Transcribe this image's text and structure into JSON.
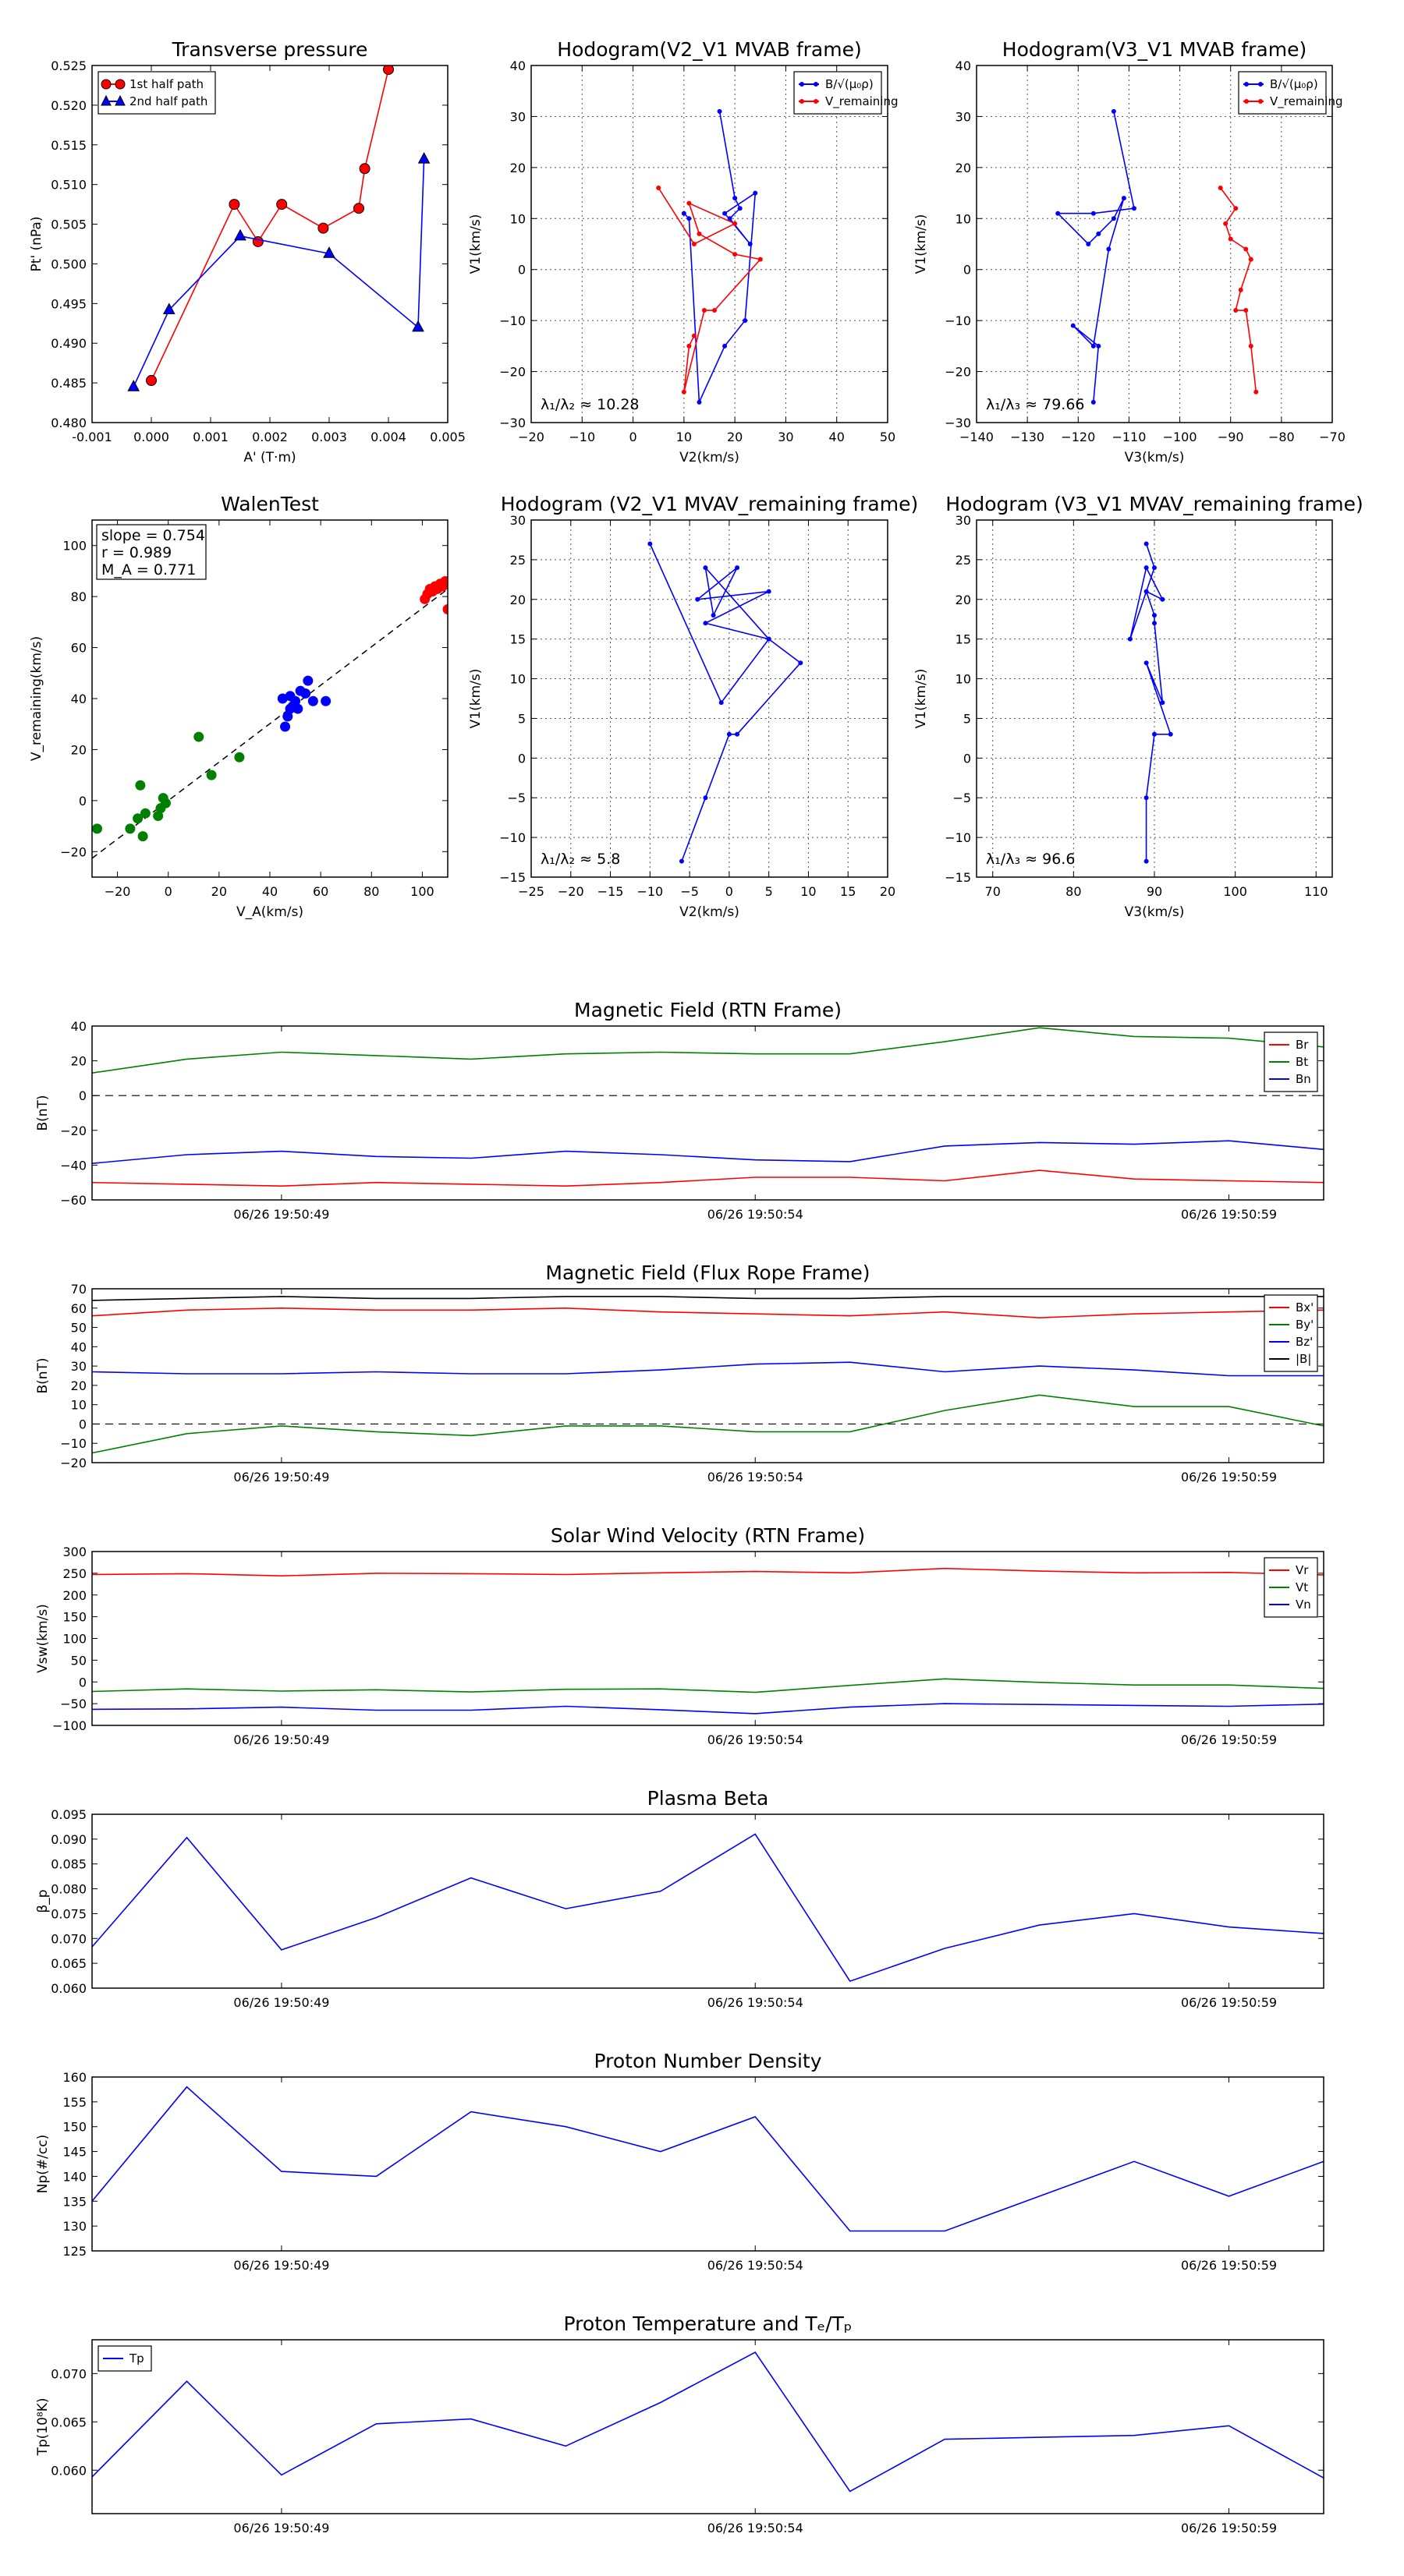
{
  "colors": {
    "red": "#ff0000",
    "green": "#008000",
    "blue": "#0000ff",
    "black": "#000000"
  },
  "chart_data": [
    {
      "id": "transverse-pressure",
      "type": "line",
      "title": "Transverse pressure",
      "xlabel": "A' (T·m)",
      "ylabel": "Pt' (nPa)",
      "xlim": [
        -0.001,
        0.005
      ],
      "ylim": [
        0.48,
        0.525
      ],
      "xticks": [
        "-0.001",
        "0.000",
        "0.001",
        "0.002",
        "0.003",
        "0.004",
        "0.005"
      ],
      "yticks": [
        "0.480",
        "0.485",
        "0.490",
        "0.495",
        "0.500",
        "0.505",
        "0.510",
        "0.515",
        "0.520",
        "0.525"
      ],
      "grid": false,
      "legend": "top-left",
      "series": [
        {
          "name": "1st half path",
          "color": "#ff0000",
          "marker": "circle",
          "x": [
            0.0,
            0.0014,
            0.0018,
            0.0022,
            0.0029,
            0.0035,
            0.0036,
            0.004
          ],
          "y": [
            0.4853,
            0.5075,
            0.5028,
            0.5075,
            0.5045,
            0.507,
            0.512,
            0.5245
          ]
        },
        {
          "name": "2nd half path",
          "color": "#0000ff",
          "marker": "triangle",
          "x": [
            -0.0003,
            0.0003,
            0.0015,
            0.003,
            0.0045,
            0.0046
          ],
          "y": [
            0.4845,
            0.4942,
            0.5035,
            0.5013,
            0.492,
            0.5132
          ]
        }
      ]
    },
    {
      "id": "hodogram-v2-v1-mvab",
      "type": "line",
      "title": "Hodogram(V2_V1 MVAB frame)",
      "xlabel": "V2(km/s)",
      "ylabel": "V1(km/s)",
      "xlim": [
        -20,
        50
      ],
      "ylim": [
        -30,
        40
      ],
      "xticks": [
        "−20",
        "−10",
        "0",
        "10",
        "20",
        "30",
        "40",
        "50"
      ],
      "yticks": [
        "−30",
        "−20",
        "−10",
        "0",
        "10",
        "20",
        "30",
        "40"
      ],
      "grid": true,
      "legend": "top-right",
      "annotation": "λ₁/λ₂ ≈ 10.28",
      "series": [
        {
          "name": "B/√(μ₀ρ)",
          "color": "#0000ff",
          "x": [
            17,
            20,
            21,
            19,
            23,
            18,
            24,
            22,
            18,
            13,
            11,
            10
          ],
          "y": [
            31,
            14,
            12,
            10,
            5,
            11,
            15,
            -10,
            -15,
            -26,
            10,
            11
          ]
        },
        {
          "name": "V_remaining",
          "color": "#ff0000",
          "x": [
            5,
            12,
            20,
            11,
            13,
            20,
            25,
            16,
            14,
            10,
            11,
            12
          ],
          "y": [
            16,
            5,
            9,
            13,
            7,
            3,
            2,
            -8,
            -8,
            -24,
            -15,
            -13
          ]
        }
      ]
    },
    {
      "id": "hodogram-v3-v1-mvab",
      "type": "line",
      "title": "Hodogram(V3_V1 MVAB frame)",
      "xlabel": "V3(km/s)",
      "ylabel": "V1(km/s)",
      "xlim": [
        -140,
        -70
      ],
      "ylim": [
        -30,
        40
      ],
      "xticks": [
        "−140",
        "−130",
        "−120",
        "−110",
        "−100",
        "−90",
        "−80",
        "−70"
      ],
      "yticks": [
        "−30",
        "−20",
        "−10",
        "0",
        "10",
        "20",
        "30",
        "40"
      ],
      "grid": true,
      "legend": "top-right",
      "annotation": "λ₁/λ₃ ≈ 79.66",
      "series": [
        {
          "name": "B/√(μ₀ρ)",
          "color": "#0000ff",
          "x": [
            -113,
            -109,
            -117,
            -124,
            -118,
            -116,
            -113,
            -111,
            -114,
            -117,
            -121,
            -116,
            -117
          ],
          "y": [
            31,
            12,
            11,
            11,
            5,
            7,
            10,
            14,
            4,
            -15,
            -11,
            -15,
            -26
          ]
        },
        {
          "name": "V_remaining",
          "color": "#ff0000",
          "x": [
            -92,
            -89,
            -91,
            -90,
            -87,
            -86,
            -88,
            -89,
            -87,
            -86,
            -85
          ],
          "y": [
            16,
            12,
            9,
            6,
            4,
            2,
            -4,
            -8,
            -8,
            -15,
            -24
          ]
        }
      ]
    },
    {
      "id": "walen-test",
      "type": "scatter",
      "title": "WalenTest",
      "xlabel": "V_A(km/s)",
      "ylabel": "V_remaining(km/s)",
      "xlim": [
        -30,
        110
      ],
      "ylim": [
        -30,
        110
      ],
      "xticks": [
        "−20",
        "0",
        "20",
        "40",
        "60",
        "80",
        "100"
      ],
      "yticks": [
        "−20",
        "0",
        "20",
        "40",
        "60",
        "80",
        "100"
      ],
      "grid": false,
      "stats": {
        "slope": "slope = 0.754",
        "r": "r = 0.989",
        "ma": "M_A = 0.771"
      },
      "fit_line": {
        "slope": 0.754,
        "intercept": 0
      },
      "series": [
        {
          "name": "green",
          "color": "#008000",
          "x": [
            -28,
            -15,
            -12,
            -11,
            -10,
            -9,
            -4,
            -3,
            -2,
            -1,
            12,
            17,
            28
          ],
          "y": [
            -11,
            -11,
            -7,
            6,
            -14,
            -5,
            -6,
            -3,
            1,
            -1,
            25,
            10,
            17
          ]
        },
        {
          "name": "blue",
          "color": "#0000ff",
          "x": [
            45,
            46,
            47,
            48,
            48,
            49,
            50,
            51,
            52,
            54,
            55,
            57,
            62
          ],
          "y": [
            40,
            29,
            33,
            36,
            41,
            37,
            39,
            36,
            43,
            42,
            47,
            39,
            39
          ]
        },
        {
          "name": "red",
          "color": "#ff0000",
          "x": [
            101,
            102,
            103,
            104,
            105,
            106,
            107,
            108,
            109,
            110,
            110
          ],
          "y": [
            79,
            81,
            83,
            82,
            84,
            83,
            85,
            84,
            86,
            85,
            75
          ]
        }
      ]
    },
    {
      "id": "hodogram-v2-v1-mvav",
      "type": "line",
      "title": "Hodogram (V2_V1 MVAV_remaining frame)",
      "xlabel": "V2(km/s)",
      "ylabel": "V1(km/s)",
      "xlim": [
        -25,
        20
      ],
      "ylim": [
        -15,
        30
      ],
      "xticks": [
        "−25",
        "−20",
        "−15",
        "−10",
        "−5",
        "0",
        "5",
        "10",
        "15",
        "20"
      ],
      "yticks": [
        "−15",
        "−10",
        "−5",
        "0",
        "5",
        "10",
        "15",
        "20",
        "25",
        "30"
      ],
      "grid": true,
      "annotation": "λ₁/λ₂ ≈ 5.8",
      "series": [
        {
          "name": "hodogram",
          "color": "#0000ff",
          "x": [
            -10,
            -1,
            5,
            -3,
            -2,
            1,
            -4,
            5,
            -3,
            5,
            9,
            1,
            0,
            -3,
            -6
          ],
          "y": [
            27,
            7,
            15,
            24,
            18,
            24,
            20,
            21,
            17,
            15,
            12,
            3,
            3,
            -5,
            -13
          ]
        }
      ]
    },
    {
      "id": "hodogram-v3-v1-mvav",
      "type": "line",
      "title": "Hodogram (V3_V1 MVAV_remaining frame)",
      "xlabel": "V3(km/s)",
      "ylabel": "V1(km/s)",
      "xlim": [
        68,
        112
      ],
      "ylim": [
        -15,
        30
      ],
      "xticks": [
        "70",
        "80",
        "90",
        "100",
        "110"
      ],
      "yticks": [
        "−15",
        "−10",
        "−5",
        "0",
        "5",
        "10",
        "15",
        "20",
        "25",
        "30"
      ],
      "grid": true,
      "annotation": "λ₁/λ₃ ≈ 96.6",
      "series": [
        {
          "name": "hodogram",
          "color": "#0000ff",
          "x": [
            89,
            90,
            87,
            89,
            91,
            89,
            90,
            90,
            91,
            89,
            92,
            90,
            89,
            89
          ],
          "y": [
            27,
            24,
            15,
            24,
            20,
            21,
            18,
            17,
            7,
            12,
            3,
            3,
            -5,
            -13
          ]
        }
      ]
    },
    {
      "id": "magnetic-field-rtn",
      "type": "line",
      "title": "Magnetic Field (RTN Frame)",
      "ylabel": "B(nT)",
      "xlim": [
        0,
        13
      ],
      "ylim": [
        -60,
        40
      ],
      "time_ticks": [
        {
          "x": 2,
          "label": "06/26 19:50:49"
        },
        {
          "x": 7,
          "label": "06/26 19:50:54"
        },
        {
          "x": 12,
          "label": "06/26 19:50:59"
        }
      ],
      "yticks": [
        "−60",
        "−40",
        "−20",
        "0",
        "20",
        "40"
      ],
      "zero_line": true,
      "legend": "top-right",
      "x": [
        0,
        1,
        2,
        3,
        4,
        5,
        6,
        7,
        8,
        9,
        10,
        11,
        12,
        13
      ],
      "series": [
        {
          "name": "Br",
          "color": "#ff0000",
          "values": [
            -50,
            -51,
            -52,
            -50,
            -51,
            -52,
            -50,
            -47,
            -47,
            -49,
            -43,
            -48,
            -49,
            -50
          ]
        },
        {
          "name": "Bt",
          "color": "#008000",
          "values": [
            13,
            21,
            25,
            23,
            21,
            24,
            25,
            24,
            24,
            31,
            39,
            34,
            33,
            28
          ]
        },
        {
          "name": "Bn",
          "color": "#0000ff",
          "values": [
            -39,
            -34,
            -32,
            -35,
            -36,
            -32,
            -34,
            -37,
            -38,
            -29,
            -27,
            -28,
            -26,
            -31
          ]
        }
      ]
    },
    {
      "id": "magnetic-field-flux-rope",
      "type": "line",
      "title": "Magnetic Field (Flux Rope Frame)",
      "ylabel": "B(nT)",
      "xlim": [
        0,
        13
      ],
      "ylim": [
        -20,
        70
      ],
      "time_ticks": [
        {
          "x": 2,
          "label": "06/26 19:50:49"
        },
        {
          "x": 7,
          "label": "06/26 19:50:54"
        },
        {
          "x": 12,
          "label": "06/26 19:50:59"
        }
      ],
      "yticks": [
        "−20",
        "−10",
        "0",
        "10",
        "20",
        "30",
        "40",
        "50",
        "60",
        "70"
      ],
      "zero_line": true,
      "legend": "top-right",
      "x": [
        0,
        1,
        2,
        3,
        4,
        5,
        6,
        7,
        8,
        9,
        10,
        11,
        12,
        13
      ],
      "series": [
        {
          "name": "Bx'",
          "color": "#ff0000",
          "values": [
            56,
            59,
            60,
            59,
            59,
            60,
            58,
            57,
            56,
            58,
            55,
            57,
            58,
            59
          ]
        },
        {
          "name": "By'",
          "color": "#008000",
          "values": [
            -15,
            -5,
            -1,
            -4,
            -6,
            -1,
            -1,
            -4,
            -4,
            7,
            15,
            9,
            9,
            -1
          ]
        },
        {
          "name": "Bz'",
          "color": "#0000ff",
          "values": [
            27,
            26,
            26,
            27,
            26,
            26,
            28,
            31,
            32,
            27,
            30,
            28,
            25,
            25
          ]
        },
        {
          "name": "|B|",
          "color": "#000000",
          "values": [
            64,
            65,
            66,
            65,
            65,
            66,
            66,
            65,
            65,
            66,
            66,
            66,
            66,
            66
          ]
        }
      ]
    },
    {
      "id": "solar-wind-velocity",
      "type": "line",
      "title": "Solar Wind Velocity (RTN Frame)",
      "ylabel": "Vsw(km/s)",
      "xlim": [
        0,
        13
      ],
      "ylim": [
        -100,
        300
      ],
      "time_ticks": [
        {
          "x": 2,
          "label": "06/26 19:50:49"
        },
        {
          "x": 7,
          "label": "06/26 19:50:54"
        },
        {
          "x": 12,
          "label": "06/26 19:50:59"
        }
      ],
      "yticks": [
        "−100",
        "−50",
        "0",
        "50",
        "100",
        "150",
        "200",
        "250",
        "300"
      ],
      "zero_line": false,
      "legend": "top-right",
      "x": [
        0,
        1,
        2,
        3,
        4,
        5,
        6,
        7,
        8,
        9,
        10,
        11,
        12,
        13
      ],
      "series": [
        {
          "name": "Vr",
          "color": "#ff0000",
          "values": [
            247,
            249,
            244,
            250,
            249,
            247,
            251,
            254,
            251,
            261,
            255,
            251,
            252,
            246
          ]
        },
        {
          "name": "Vt",
          "color": "#008000",
          "values": [
            -22,
            -16,
            -21,
            -18,
            -23,
            -17,
            -16,
            -24,
            -8,
            7,
            -1,
            -7,
            -7,
            -15
          ]
        },
        {
          "name": "Vn",
          "color": "#0000ff",
          "values": [
            -63,
            -62,
            -58,
            -65,
            -65,
            -56,
            -64,
            -73,
            -58,
            -50,
            -52,
            -54,
            -56,
            -51
          ]
        }
      ]
    },
    {
      "id": "plasma-beta",
      "type": "line",
      "title": "Plasma Beta",
      "ylabel": "β_p",
      "xlim": [
        0,
        13
      ],
      "ylim": [
        0.06,
        0.095
      ],
      "time_ticks": [
        {
          "x": 2,
          "label": "06/26 19:50:49"
        },
        {
          "x": 7,
          "label": "06/26 19:50:54"
        },
        {
          "x": 12,
          "label": "06/26 19:50:59"
        }
      ],
      "yticks": [
        "0.060",
        "0.065",
        "0.070",
        "0.075",
        "0.080",
        "0.085",
        "0.090",
        "0.095"
      ],
      "x": [
        0,
        1,
        2,
        3,
        4,
        5,
        6,
        7,
        8,
        9,
        10,
        11,
        12,
        13
      ],
      "series": [
        {
          "name": "beta",
          "color": "#0000ff",
          "values": [
            0.0683,
            0.0903,
            0.0677,
            0.0742,
            0.0822,
            0.076,
            0.0795,
            0.091,
            0.0614,
            0.068,
            0.0727,
            0.075,
            0.0723,
            0.071
          ]
        }
      ]
    },
    {
      "id": "proton-number-density",
      "type": "line",
      "title": "Proton Number Density",
      "ylabel": "Np(#/cc)",
      "xlim": [
        0,
        13
      ],
      "ylim": [
        125,
        160
      ],
      "time_ticks": [
        {
          "x": 2,
          "label": "06/26 19:50:49"
        },
        {
          "x": 7,
          "label": "06/26 19:50:54"
        },
        {
          "x": 12,
          "label": "06/26 19:50:59"
        }
      ],
      "yticks": [
        "125",
        "130",
        "135",
        "140",
        "145",
        "150",
        "155",
        "160"
      ],
      "x": [
        0,
        1,
        2,
        3,
        4,
        5,
        6,
        7,
        8,
        9,
        10,
        11,
        12,
        13
      ],
      "series": [
        {
          "name": "density",
          "color": "#0000ff",
          "values": [
            135,
            158,
            141,
            140,
            153,
            150,
            145,
            152,
            129,
            129,
            136,
            143,
            136,
            143
          ]
        }
      ]
    },
    {
      "id": "proton-temperature",
      "type": "line",
      "title": "Proton Temperature and Tₑ/Tₚ",
      "ylabel": "Tp(10⁸K)",
      "xlim": [
        0,
        13
      ],
      "ylim": [
        0.0555,
        0.0735
      ],
      "time_ticks": [
        {
          "x": 2,
          "label": "06/26 19:50:49"
        },
        {
          "x": 7,
          "label": "06/26 19:50:54"
        },
        {
          "x": 12,
          "label": "06/26 19:50:59"
        }
      ],
      "yticks": [
        "0.060",
        "0.065",
        "0.070"
      ],
      "ytick_values": [
        0.06,
        0.065,
        0.07
      ],
      "legend": "top-left",
      "x": [
        0,
        1,
        2,
        3,
        4,
        5,
        6,
        7,
        8,
        9,
        10,
        11,
        12,
        13
      ],
      "series": [
        {
          "name": "Tp",
          "color": "#0000ff",
          "values": [
            0.0593,
            0.0692,
            0.0595,
            0.0648,
            0.0653,
            0.0625,
            0.067,
            0.0722,
            0.0578,
            0.0632,
            0.0634,
            0.0636,
            0.0646,
            0.0592
          ]
        }
      ]
    }
  ]
}
